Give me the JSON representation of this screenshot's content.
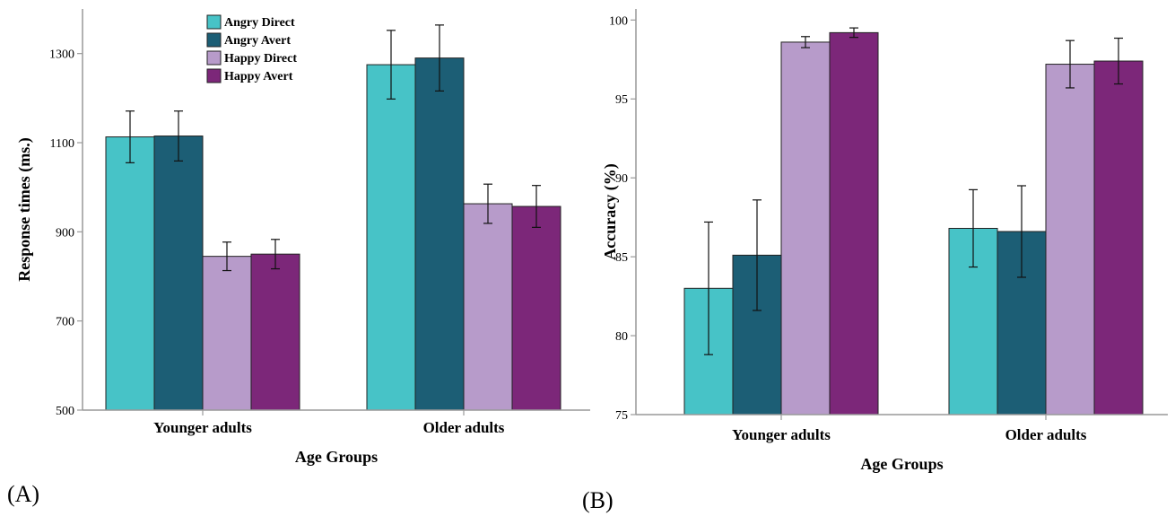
{
  "series_colors": [
    "#47c3c7",
    "#1c5e75",
    "#b79bca",
    "#7c2779"
  ],
  "legend": [
    "Angry Direct",
    "Angry Avert",
    "Happy Direct",
    "Happy Avert"
  ],
  "chart_data": [
    {
      "type": "bar",
      "panel_label": "(A)",
      "categories": [
        "Younger adults",
        "Older adults"
      ],
      "xlabel": "Age Groups",
      "ylabel": "Response times (ms.)",
      "ylim": [
        500,
        1400
      ],
      "yticks": [
        500,
        700,
        900,
        1100,
        1300
      ],
      "legend_placement": "top-center",
      "series": [
        {
          "name": "Angry Direct",
          "values": [
            1113,
            1275
          ],
          "error": [
            58,
            77
          ]
        },
        {
          "name": "Angry Avert",
          "values": [
            1115,
            1290
          ],
          "error": [
            56,
            74
          ]
        },
        {
          "name": "Happy Direct",
          "values": [
            845,
            963
          ],
          "error": [
            32,
            44
          ]
        },
        {
          "name": "Happy Avert",
          "values": [
            850,
            957
          ],
          "error": [
            33,
            47
          ]
        }
      ]
    },
    {
      "type": "bar",
      "panel_label": "(B)",
      "categories": [
        "Younger adults",
        "Older adults"
      ],
      "xlabel": "Age Groups",
      "ylabel": "Accuracy (%)",
      "ylim": [
        75,
        100.7
      ],
      "yticks": [
        75,
        80,
        85,
        90,
        95,
        100
      ],
      "series": [
        {
          "name": "Angry Direct",
          "values": [
            83.0,
            86.8
          ],
          "error": [
            4.2,
            2.45
          ]
        },
        {
          "name": "Angry Avert",
          "values": [
            85.1,
            86.6
          ],
          "error": [
            3.5,
            2.9
          ]
        },
        {
          "name": "Happy Direct",
          "values": [
            98.6,
            97.2
          ],
          "error": [
            0.35,
            1.5
          ]
        },
        {
          "name": "Happy Avert",
          "values": [
            99.2,
            97.4
          ],
          "error": [
            0.3,
            1.45
          ]
        }
      ]
    }
  ]
}
